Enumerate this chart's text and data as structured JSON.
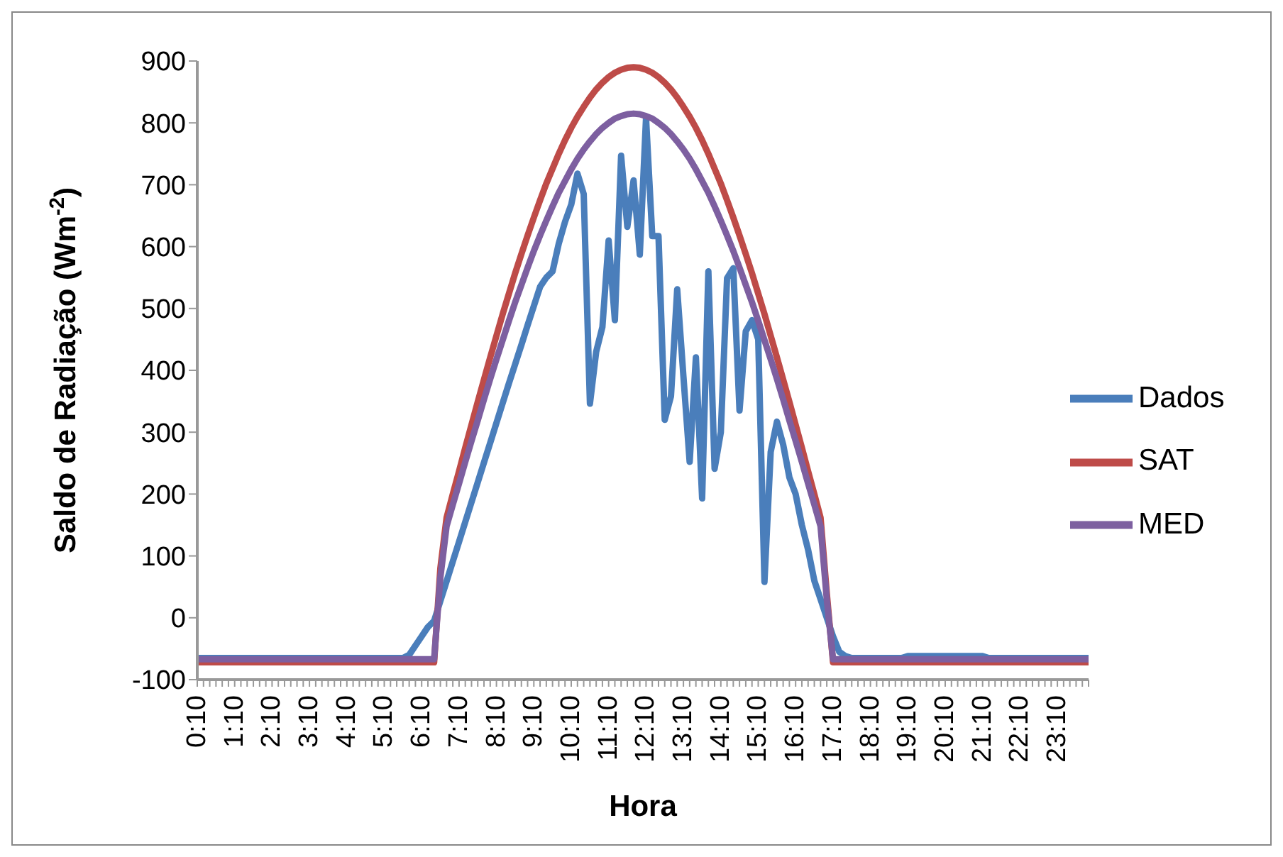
{
  "chart_data": {
    "type": "line",
    "xlabel": "Hora",
    "ylabel": "Saldo de Radiação (Wm$^{-2}$)",
    "categories": [
      "0:10",
      null,
      null,
      null,
      null,
      null,
      "1:10",
      null,
      null,
      null,
      null,
      null,
      "2:10",
      null,
      null,
      null,
      null,
      null,
      "3:10",
      null,
      null,
      null,
      null,
      null,
      "4:10",
      null,
      null,
      null,
      null,
      null,
      "5:10",
      null,
      null,
      null,
      null,
      null,
      "6:10",
      null,
      null,
      null,
      null,
      null,
      "7:10",
      null,
      null,
      null,
      null,
      null,
      "8:10",
      null,
      null,
      null,
      null,
      null,
      "9:10",
      null,
      null,
      null,
      null,
      null,
      "10:10",
      null,
      null,
      null,
      null,
      null,
      "11:10",
      null,
      null,
      null,
      null,
      null,
      "12:10",
      null,
      null,
      null,
      null,
      null,
      "13:10",
      null,
      null,
      null,
      null,
      null,
      "14:10",
      null,
      null,
      null,
      null,
      null,
      "15:10",
      null,
      null,
      null,
      null,
      null,
      "16:10",
      null,
      null,
      null,
      null,
      null,
      "17:10",
      null,
      null,
      null,
      null,
      null,
      "18:10",
      null,
      null,
      null,
      null,
      null,
      "19:10",
      null,
      null,
      null,
      null,
      null,
      "20:10",
      null,
      null,
      null,
      null,
      null,
      "21:10",
      null,
      null,
      null,
      null,
      null,
      "22:10",
      null,
      null,
      null,
      null,
      null,
      "23:10",
      null,
      null,
      null,
      null,
      null
    ],
    "series": [
      {
        "name": "Dados",
        "color": "#4a7ebb",
        "values": [
          -65,
          -65,
          -65,
          -65,
          -65,
          -65,
          -65,
          -65,
          -65,
          -65,
          -65,
          -65,
          -65,
          -65,
          -65,
          -65,
          -65,
          -65,
          -65,
          -65,
          -65,
          -65,
          -65,
          -65,
          -65,
          -65,
          -65,
          -65,
          -65,
          -65,
          -65,
          -65,
          -65,
          -65,
          -60,
          -45,
          -30,
          -15,
          -5,
          27,
          59,
          91,
          123,
          155,
          187,
          219,
          251,
          283,
          315,
          347,
          379,
          410,
          441,
          473,
          504,
          535,
          550,
          560,
          605,
          640,
          668,
          718,
          685,
          346,
          430,
          470,
          610,
          481,
          747,
          632,
          707,
          587,
          808,
          617,
          617,
          320,
          358,
          531,
          390,
          252,
          421,
          193,
          560,
          241,
          300,
          549,
          565,
          335,
          463,
          481,
          450,
          58,
          268,
          317,
          280,
          227,
          200,
          150,
          110,
          60,
          30,
          0,
          -30,
          -55,
          -62,
          -65,
          -65,
          -65,
          -65,
          -65,
          -65,
          -65,
          -65,
          -65,
          -62,
          -62,
          -62,
          -62,
          -62,
          -62,
          -62,
          -62,
          -62,
          -62,
          -62,
          -62,
          -62,
          -65,
          -65,
          -65,
          -65,
          -65,
          -65,
          -65,
          -65,
          -65,
          -65,
          -65,
          -65,
          -65,
          -65,
          -65,
          -65,
          -65
        ]
      },
      {
        "name": "SAT",
        "color": "#be4b48",
        "values": [
          -72,
          -72,
          -72,
          -72,
          -72,
          -72,
          -72,
          -72,
          -72,
          -72,
          -72,
          -72,
          -72,
          -72,
          -72,
          -72,
          -72,
          -72,
          -72,
          -72,
          -72,
          -72,
          -72,
          -72,
          -72,
          -72,
          -72,
          -72,
          -72,
          -72,
          -72,
          -72,
          -72,
          -72,
          -72,
          -72,
          -72,
          -72,
          -72,
          80,
          162,
          200,
          237,
          275,
          312,
          349,
          385,
          421,
          456,
          491,
          524,
          557,
          588,
          618,
          647,
          675,
          702,
          726,
          750,
          772,
          792,
          810,
          826,
          841,
          854,
          865,
          874,
          881,
          886,
          889,
          890,
          889,
          886,
          881,
          874,
          865,
          854,
          841,
          826,
          810,
          792,
          772,
          750,
          726,
          702,
          675,
          647,
          618,
          588,
          557,
          524,
          491,
          456,
          421,
          385,
          349,
          312,
          275,
          237,
          200,
          162,
          40,
          -72,
          -72,
          -72,
          -72,
          -72,
          -72,
          -72,
          -72,
          -72,
          -72,
          -72,
          -72,
          -72,
          -72,
          -72,
          -72,
          -72,
          -72,
          -72,
          -72,
          -72,
          -72,
          -72,
          -72,
          -72,
          -72,
          -72,
          -72,
          -72,
          -72,
          -72,
          -72,
          -72,
          -72,
          -72,
          -72,
          -72,
          -72,
          -72,
          -72,
          -72,
          -72
        ]
      },
      {
        "name": "MED",
        "color": "#7d5fa0",
        "values": [
          -67,
          -67,
          -67,
          -67,
          -67,
          -67,
          -67,
          -67,
          -67,
          -67,
          -67,
          -67,
          -67,
          -67,
          -67,
          -67,
          -67,
          -67,
          -67,
          -67,
          -67,
          -67,
          -67,
          -67,
          -67,
          -67,
          -67,
          -67,
          -67,
          -67,
          -67,
          -67,
          -67,
          -67,
          -67,
          -67,
          -67,
          -67,
          -67,
          65,
          148,
          183,
          217,
          252,
          286,
          319,
          353,
          386,
          418,
          449,
          480,
          510,
          538,
          566,
          593,
          618,
          642,
          665,
          687,
          706,
          725,
          742,
          757,
          770,
          782,
          792,
          800,
          807,
          811,
          814,
          815,
          814,
          811,
          807,
          800,
          792,
          782,
          770,
          757,
          742,
          725,
          706,
          687,
          665,
          642,
          618,
          593,
          566,
          538,
          510,
          480,
          449,
          418,
          386,
          353,
          319,
          286,
          252,
          217,
          183,
          148,
          30,
          -67,
          -67,
          -67,
          -67,
          -67,
          -67,
          -67,
          -67,
          -67,
          -67,
          -67,
          -67,
          -67,
          -67,
          -67,
          -67,
          -67,
          -67,
          -67,
          -67,
          -67,
          -67,
          -67,
          -67,
          -67,
          -67,
          -67,
          -67,
          -67,
          -67,
          -67,
          -67,
          -67,
          -67,
          -67,
          -67,
          -67,
          -67,
          -67,
          -67,
          -67,
          -67
        ]
      }
    ],
    "ylim": [
      -100,
      900
    ],
    "yticks": [
      -100,
      0,
      100,
      200,
      300,
      400,
      500,
      600,
      700,
      800,
      900
    ],
    "legend": "right",
    "marker": "none",
    "line_style": "solid"
  }
}
